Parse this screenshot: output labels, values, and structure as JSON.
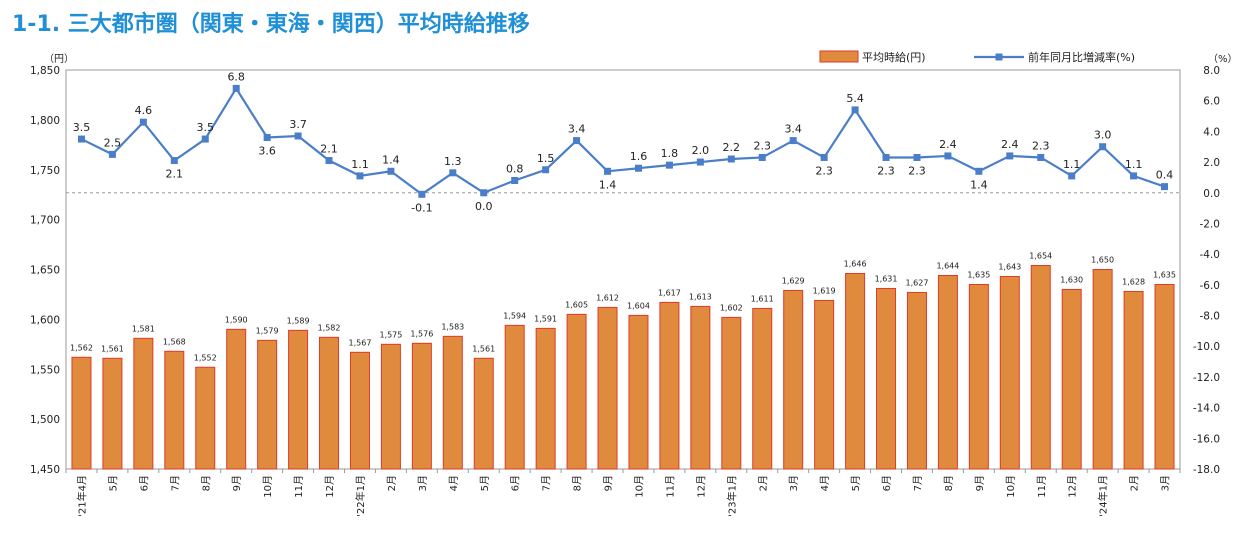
{
  "title": "1-1. 三大都市圏（関東・東海・関西）平均時給推移",
  "chart_data": {
    "type": "bar+line",
    "categories": [
      "'21年4月",
      "5月",
      "6月",
      "7月",
      "8月",
      "9月",
      "10月",
      "11月",
      "12月",
      "'22年1月",
      "2月",
      "3月",
      "4月",
      "5月",
      "6月",
      "7月",
      "8月",
      "9月",
      "10月",
      "11月",
      "12月",
      "'23年1月",
      "2月",
      "3月",
      "4月",
      "5月",
      "6月",
      "7月",
      "8月",
      "9月",
      "10月",
      "11月",
      "12月",
      "'24年1月",
      "2月",
      "3月"
    ],
    "y_left_unit": "（円）",
    "y_right_unit": "（%）",
    "y_left_range": [
      1450,
      1850
    ],
    "y_left_ticks": [
      "1,450",
      "1,500",
      "1,550",
      "1,600",
      "1,650",
      "1,700",
      "1,750",
      "1,800",
      "1,850"
    ],
    "y_right_range": [
      -18,
      8
    ],
    "y_right_ticks": [
      "-18.0",
      "-16.0",
      "-14.0",
      "-12.0",
      "-10.0",
      "-8.0",
      "-6.0",
      "-4.0",
      "-2.0",
      "0.0",
      "2.0",
      "4.0",
      "6.0",
      "8.0"
    ],
    "series": [
      {
        "name": "平均時給(円)",
        "type": "bar",
        "axis": "left",
        "color": "#e08a3e",
        "border_color": "#e03a2a",
        "values": [
          1562,
          1561,
          1581,
          1568,
          1552,
          1590,
          1579,
          1589,
          1582,
          1567,
          1575,
          1576,
          1583,
          1561,
          1594,
          1591,
          1605,
          1612,
          1604,
          1617,
          1613,
          1602,
          1611,
          1629,
          1619,
          1646,
          1631,
          1627,
          1644,
          1635,
          1643,
          1654,
          1630,
          1650,
          1628,
          1635
        ],
        "labels": [
          "1,562",
          "1,561",
          "1,581",
          "1,568",
          "1,552",
          "1,590",
          "1,579",
          "1,589",
          "1,582",
          "1,567",
          "1,575",
          "1,576",
          "1,583",
          "1,561",
          "1,594",
          "1,591",
          "1,605",
          "1,612",
          "1,604",
          "1,617",
          "1,613",
          "1,602",
          "1,611",
          "1,629",
          "1,619",
          "1,646",
          "1,631",
          "1,627",
          "1,644",
          "1,635",
          "1,643",
          "1,654",
          "1,630",
          "1,650",
          "1,628",
          "1,635"
        ]
      },
      {
        "name": "前年同月比増減率(%)",
        "type": "line",
        "axis": "right",
        "color": "#4a7ec8",
        "values": [
          3.5,
          2.5,
          4.6,
          2.1,
          3.5,
          6.8,
          3.6,
          3.7,
          2.1,
          1.1,
          1.4,
          -0.1,
          1.3,
          0.0,
          0.8,
          1.5,
          3.4,
          1.4,
          1.6,
          1.8,
          2.0,
          2.2,
          2.3,
          3.4,
          2.3,
          5.4,
          2.3,
          2.3,
          2.4,
          1.4,
          2.4,
          2.3,
          1.1,
          3.0,
          1.1,
          0.4
        ],
        "labels": [
          "3.5",
          "2.5",
          "4.6",
          "2.1",
          "3.5",
          "6.8",
          "3.6",
          "3.7",
          "2.1",
          "1.1",
          "1.4",
          "-0.1",
          "1.3",
          "0.0",
          "0.8",
          "1.5",
          "3.4",
          "1.4",
          "1.6",
          "1.8",
          "2.0",
          "2.2",
          "2.3",
          "3.4",
          "2.3",
          "5.4",
          "2.3",
          "2.3",
          "2.4",
          "1.4",
          "2.4",
          "2.3",
          "1.1",
          "3.0",
          "1.1",
          "0.4"
        ],
        "label_pos": [
          "above",
          "above",
          "above",
          "below",
          "above",
          "above",
          "below",
          "above",
          "above",
          "above",
          "above",
          "below",
          "above",
          "below",
          "above",
          "above",
          "above",
          "below",
          "above",
          "above",
          "above",
          "above",
          "above",
          "above",
          "below",
          "above",
          "below",
          "below",
          "above",
          "below",
          "above",
          "above",
          "above",
          "above",
          "above",
          "above"
        ]
      }
    ],
    "legend_position": "top-right",
    "zero_reference_line": true
  }
}
